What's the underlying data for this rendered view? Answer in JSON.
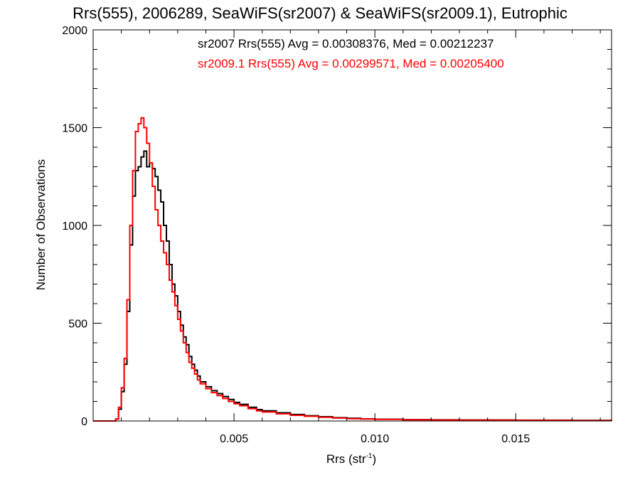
{
  "chart_data": {
    "type": "histogram",
    "title": "Rrs(555), 2006289, SeaWiFS(sr2007) & SeaWiFS(sr2009.1), Eutrophic",
    "xlabel": {
      "base": "Rrs (str",
      "sup": "-1",
      "close": ")"
    },
    "ylabel": "Number of Observations",
    "xlim": [
      0.0,
      0.0184
    ],
    "ylim": [
      0,
      2000
    ],
    "x_ticks": [
      {
        "value": 0.005,
        "label": "0.005"
      },
      {
        "value": 0.01,
        "label": "0.010"
      },
      {
        "value": 0.015,
        "label": "0.015"
      }
    ],
    "y_ticks": [
      {
        "value": 0,
        "label": "0"
      },
      {
        "value": 500,
        "label": "500"
      },
      {
        "value": 1000,
        "label": "1000"
      },
      {
        "value": 1500,
        "label": "1500"
      },
      {
        "value": 2000,
        "label": "2000"
      }
    ],
    "annotations": [
      {
        "text": "sr2007 Rrs(555) Avg = 0.00308376, Med = 0.00212237",
        "color": "#000000"
      },
      {
        "text": "sr2009.1 Rrs(555) Avg = 0.00299571, Med = 0.00205400",
        "color": "#ff0000"
      }
    ],
    "series": [
      {
        "color": "#000000",
        "points": [
          [
            0.0,
            0
          ],
          [
            0.0007,
            0
          ],
          [
            0.0008,
            10
          ],
          [
            0.0009,
            60
          ],
          [
            0.001,
            150
          ],
          [
            0.0011,
            290
          ],
          [
            0.0012,
            560
          ],
          [
            0.0013,
            900
          ],
          [
            0.0014,
            1150
          ],
          [
            0.0015,
            1280
          ],
          [
            0.0016,
            1300
          ],
          [
            0.0017,
            1350
          ],
          [
            0.0018,
            1380
          ],
          [
            0.0019,
            1300
          ],
          [
            0.002,
            1320
          ],
          [
            0.0021,
            1290
          ],
          [
            0.0022,
            1250
          ],
          [
            0.0023,
            1180
          ],
          [
            0.0024,
            1120
          ],
          [
            0.0025,
            1000
          ],
          [
            0.0026,
            920
          ],
          [
            0.0027,
            800
          ],
          [
            0.0028,
            700
          ],
          [
            0.0029,
            640
          ],
          [
            0.003,
            560
          ],
          [
            0.0031,
            490
          ],
          [
            0.0032,
            430
          ],
          [
            0.0033,
            390
          ],
          [
            0.0034,
            330
          ],
          [
            0.0035,
            290
          ],
          [
            0.0036,
            260
          ],
          [
            0.0037,
            230
          ],
          [
            0.0038,
            200
          ],
          [
            0.004,
            175
          ],
          [
            0.0042,
            155
          ],
          [
            0.0044,
            140
          ],
          [
            0.0046,
            125
          ],
          [
            0.0048,
            110
          ],
          [
            0.005,
            95
          ],
          [
            0.0052,
            85
          ],
          [
            0.0055,
            70
          ],
          [
            0.0058,
            58
          ],
          [
            0.006,
            52
          ],
          [
            0.0065,
            42
          ],
          [
            0.007,
            33
          ],
          [
            0.0075,
            27
          ],
          [
            0.008,
            22
          ],
          [
            0.0085,
            17
          ],
          [
            0.009,
            14
          ],
          [
            0.0095,
            11
          ],
          [
            0.01,
            9
          ],
          [
            0.011,
            7
          ],
          [
            0.012,
            6
          ],
          [
            0.013,
            5
          ],
          [
            0.015,
            4
          ],
          [
            0.017,
            3
          ],
          [
            0.0184,
            2
          ]
        ]
      },
      {
        "color": "#ff0000",
        "points": [
          [
            0.0,
            0
          ],
          [
            0.0007,
            0
          ],
          [
            0.0008,
            10
          ],
          [
            0.0009,
            70
          ],
          [
            0.001,
            170
          ],
          [
            0.0011,
            320
          ],
          [
            0.0012,
            620
          ],
          [
            0.0013,
            1000
          ],
          [
            0.0014,
            1280
          ],
          [
            0.0015,
            1480
          ],
          [
            0.0016,
            1520
          ],
          [
            0.0017,
            1550
          ],
          [
            0.0018,
            1500
          ],
          [
            0.0019,
            1420
          ],
          [
            0.002,
            1320
          ],
          [
            0.0021,
            1200
          ],
          [
            0.0022,
            1080
          ],
          [
            0.0023,
            1000
          ],
          [
            0.0024,
            920
          ],
          [
            0.0025,
            860
          ],
          [
            0.0026,
            800
          ],
          [
            0.0027,
            720
          ],
          [
            0.0028,
            660
          ],
          [
            0.0029,
            590
          ],
          [
            0.003,
            520
          ],
          [
            0.0031,
            460
          ],
          [
            0.0032,
            400
          ],
          [
            0.0033,
            350
          ],
          [
            0.0034,
            300
          ],
          [
            0.0035,
            270
          ],
          [
            0.0036,
            240
          ],
          [
            0.0037,
            210
          ],
          [
            0.0038,
            190
          ],
          [
            0.004,
            165
          ],
          [
            0.0042,
            145
          ],
          [
            0.0044,
            130
          ],
          [
            0.0046,
            115
          ],
          [
            0.0048,
            100
          ],
          [
            0.005,
            88
          ],
          [
            0.0052,
            78
          ],
          [
            0.0055,
            63
          ],
          [
            0.0058,
            52
          ],
          [
            0.006,
            46
          ],
          [
            0.0065,
            37
          ],
          [
            0.007,
            29
          ],
          [
            0.0075,
            24
          ],
          [
            0.008,
            19
          ],
          [
            0.0085,
            15
          ],
          [
            0.009,
            12
          ],
          [
            0.0095,
            10
          ],
          [
            0.01,
            8
          ],
          [
            0.011,
            6
          ],
          [
            0.012,
            5
          ],
          [
            0.013,
            4
          ],
          [
            0.015,
            3
          ],
          [
            0.017,
            2
          ],
          [
            0.0184,
            2
          ]
        ]
      }
    ]
  }
}
